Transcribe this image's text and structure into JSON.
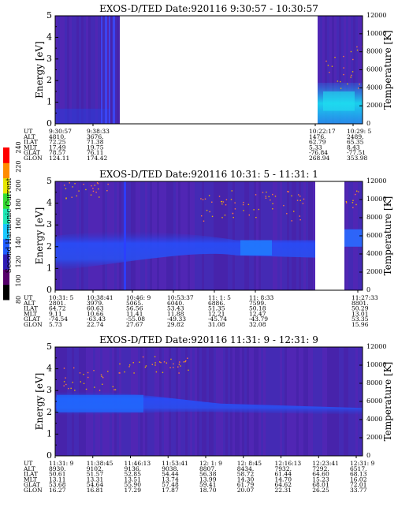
{
  "figure": {
    "colorbar": {
      "label": "Second Harmonic Current",
      "ticks": [
        "80",
        "100",
        "120",
        "140",
        "160",
        "180",
        "200",
        "220",
        "240"
      ],
      "colors": [
        "#000000",
        "#55006a",
        "#2d1ab4",
        "#1f5cff",
        "#19c8ff",
        "#1ee6b4",
        "#32dc32",
        "#e6e600",
        "#ff8c00",
        "#ff0000"
      ]
    }
  },
  "chart_data": [
    {
      "type": "heatmap",
      "title": "EXOS-D/TED   Date:920116  9:30:57 - 10:30:57",
      "ylabel": "Energy [eV]",
      "y2label": "Temperature [K]",
      "ylim": [
        0,
        5
      ],
      "yticks": [
        "0",
        "1",
        "2",
        "3",
        "4",
        "5"
      ],
      "y2lim": [
        0,
        12000
      ],
      "y2ticks": [
        "0",
        "2000",
        "4000",
        "6000",
        "8000",
        "10000",
        "12000"
      ],
      "data_gaps": [
        "9:41 - 10:22"
      ],
      "orbit_rows": [
        "UT",
        "ALT",
        "ILAT",
        "MLT",
        "GLAT",
        "GLON"
      ],
      "orbit_columns": [
        {
          "values": [
            "9:30:57",
            "4810.",
            "72.25",
            "17.49",
            "78.57",
            "124.11"
          ]
        },
        {
          "values": [
            "9:38:33",
            "3676.",
            "71.38",
            "19.75",
            "76.11",
            "174.42"
          ]
        },
        {
          "values": [
            "10:22:17",
            "1476.",
            "62.79",
            "5.33",
            "-76.84",
            "268.94"
          ]
        },
        {
          "values": [
            "10:29: 5",
            "2489.",
            "65.35",
            "8.43",
            "-77.51",
            "353.98"
          ]
        }
      ]
    },
    {
      "type": "heatmap",
      "title": "EXOS-D/TED   Date:920116  10:31: 5 - 11:31: 1",
      "ylabel": "Energy [eV]",
      "y2label": "Temperature [K]",
      "ylim": [
        0,
        5
      ],
      "yticks": [
        "0",
        "1",
        "2",
        "3",
        "4",
        "5"
      ],
      "y2lim": [
        0,
        12000
      ],
      "y2ticks": [
        "0",
        "2000",
        "4000",
        "6000",
        "8000",
        "10000",
        "12000"
      ],
      "data_gaps": [
        "11:19 - 11:27"
      ],
      "orbit_rows": [
        "UT",
        "ALT",
        "ILAT",
        "MLT",
        "GLAT",
        "GLON"
      ],
      "orbit_columns": [
        {
          "values": [
            "10:31: 5",
            "2801.",
            "64.72",
            "9.11",
            "-74.54",
            "5.73"
          ]
        },
        {
          "values": [
            "10:38:41",
            "3979.",
            "60.63",
            "10.66",
            "-63.43",
            "22.74"
          ]
        },
        {
          "values": [
            "10:46: 9",
            "5065.",
            "56.56",
            "11.41",
            "-55.08",
            "27.67"
          ]
        },
        {
          "values": [
            "10:53:37",
            "6040.",
            "53.43",
            "11.88",
            "-49.33",
            "29.82"
          ]
        },
        {
          "values": [
            "11: 1: 5",
            "6886.",
            "51.35",
            "12.21",
            "-45.74",
            "31.08"
          ]
        },
        {
          "values": [
            "11: 8:33",
            "7599.",
            "50.18",
            "12.47",
            "-43.79",
            "32.08"
          ]
        },
        {
          "values": [
            "11:27:33",
            "8801.",
            "50.29",
            "13.01",
            "53.35",
            "15.96"
          ]
        }
      ]
    },
    {
      "type": "heatmap",
      "title": "EXOS-D/TED   Date:920116  11:31: 9 - 12:31: 9",
      "ylabel": "Energy [eV]",
      "y2label": "Temperature [K]",
      "ylim": [
        0,
        5
      ],
      "yticks": [
        "0",
        "1",
        "2",
        "3",
        "4",
        "5"
      ],
      "y2lim": [
        0,
        12000
      ],
      "y2ticks": [
        "0",
        "2000",
        "4000",
        "6000",
        "8000",
        "10000",
        "12000"
      ],
      "data_gaps": [],
      "orbit_rows": [
        "UT",
        "ALT",
        "ILAT",
        "MLT",
        "GLAT",
        "GLON"
      ],
      "orbit_columns": [
        {
          "values": [
            "11:31: 9",
            "8930.",
            "50.61",
            "13.11",
            "53.68",
            "16.27"
          ]
        },
        {
          "values": [
            "11:38:45",
            "9102.",
            "51.57",
            "13.31",
            "54.64",
            "16.81"
          ]
        },
        {
          "values": [
            "11:46:13",
            "9136.",
            "52.85",
            "13.51",
            "55.90",
            "17.29"
          ]
        },
        {
          "values": [
            "11:53:41",
            "9038.",
            "54.44",
            "13.74",
            "57.48",
            "17.87"
          ]
        },
        {
          "values": [
            "12: 1: 9",
            "8807.",
            "56.38",
            "13.99",
            "59.41",
            "18.70"
          ]
        },
        {
          "values": [
            "12: 8:45",
            "8434.",
            "58.72",
            "14.30",
            "61.79",
            "20.07"
          ]
        },
        {
          "values": [
            "12:16:13",
            "7932.",
            "61.44",
            "14.70",
            "64.62",
            "22.31"
          ]
        },
        {
          "values": [
            "12:23:41",
            "7292.",
            "64.60",
            "15.23",
            "68.01",
            "26.25"
          ]
        },
        {
          "values": [
            "12:31: 9",
            "6517.",
            "68.13",
            "16.02",
            "72.01",
            "33.77"
          ]
        }
      ]
    }
  ]
}
